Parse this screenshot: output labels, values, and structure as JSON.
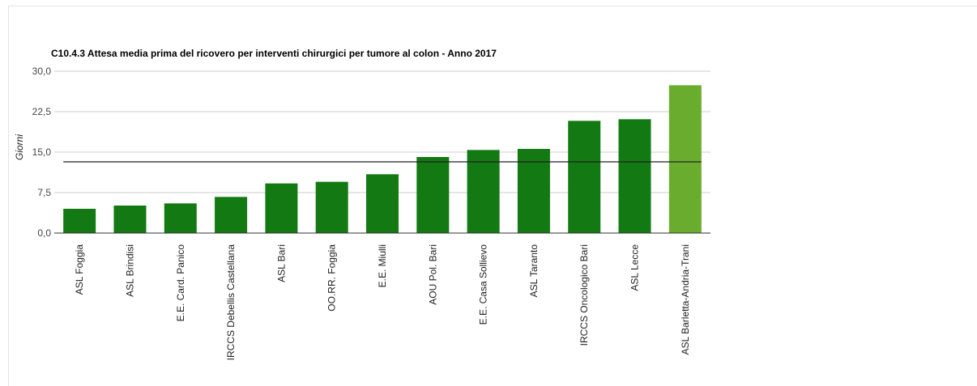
{
  "chart_data": {
    "type": "bar",
    "title": "C10.4.3 Attesa media prima del ricovero per interventi chirurgici per tumore al colon - Anno 2017",
    "xlabel": "",
    "ylabel": "Giorni",
    "ylim": [
      0,
      30
    ],
    "yticks": [
      "0,0",
      "7,5",
      "15,0",
      "22,5",
      "30,0"
    ],
    "ytick_values": [
      0,
      7.5,
      15,
      22.5,
      30
    ],
    "grid": true,
    "categories": [
      "ASL Foggia",
      "ASL Brindisi",
      "E.E. Card. Panico",
      "IRCCS Debellis Castellana",
      "ASL Bari",
      "OO.RR. Foggia",
      "E.E. Miulli",
      "AOU Pol. Bari",
      "E.E. Casa Sollievo",
      "ASL Taranto",
      "IRCCS Oncologico Bari",
      "ASL Lecce",
      "ASL Barletta-Andria-Trani"
    ],
    "values": [
      4.5,
      5.1,
      5.5,
      6.7,
      9.2,
      9.5,
      10.9,
      14.1,
      15.4,
      15.6,
      20.8,
      21.1,
      27.4
    ],
    "highlight_index": 12,
    "reference_line": 13.2,
    "colors": {
      "bar": "#137a13",
      "highlight": "#6aad2e",
      "reference_line": "#222222",
      "grid": "#cccccc",
      "axis": "#333333"
    }
  }
}
